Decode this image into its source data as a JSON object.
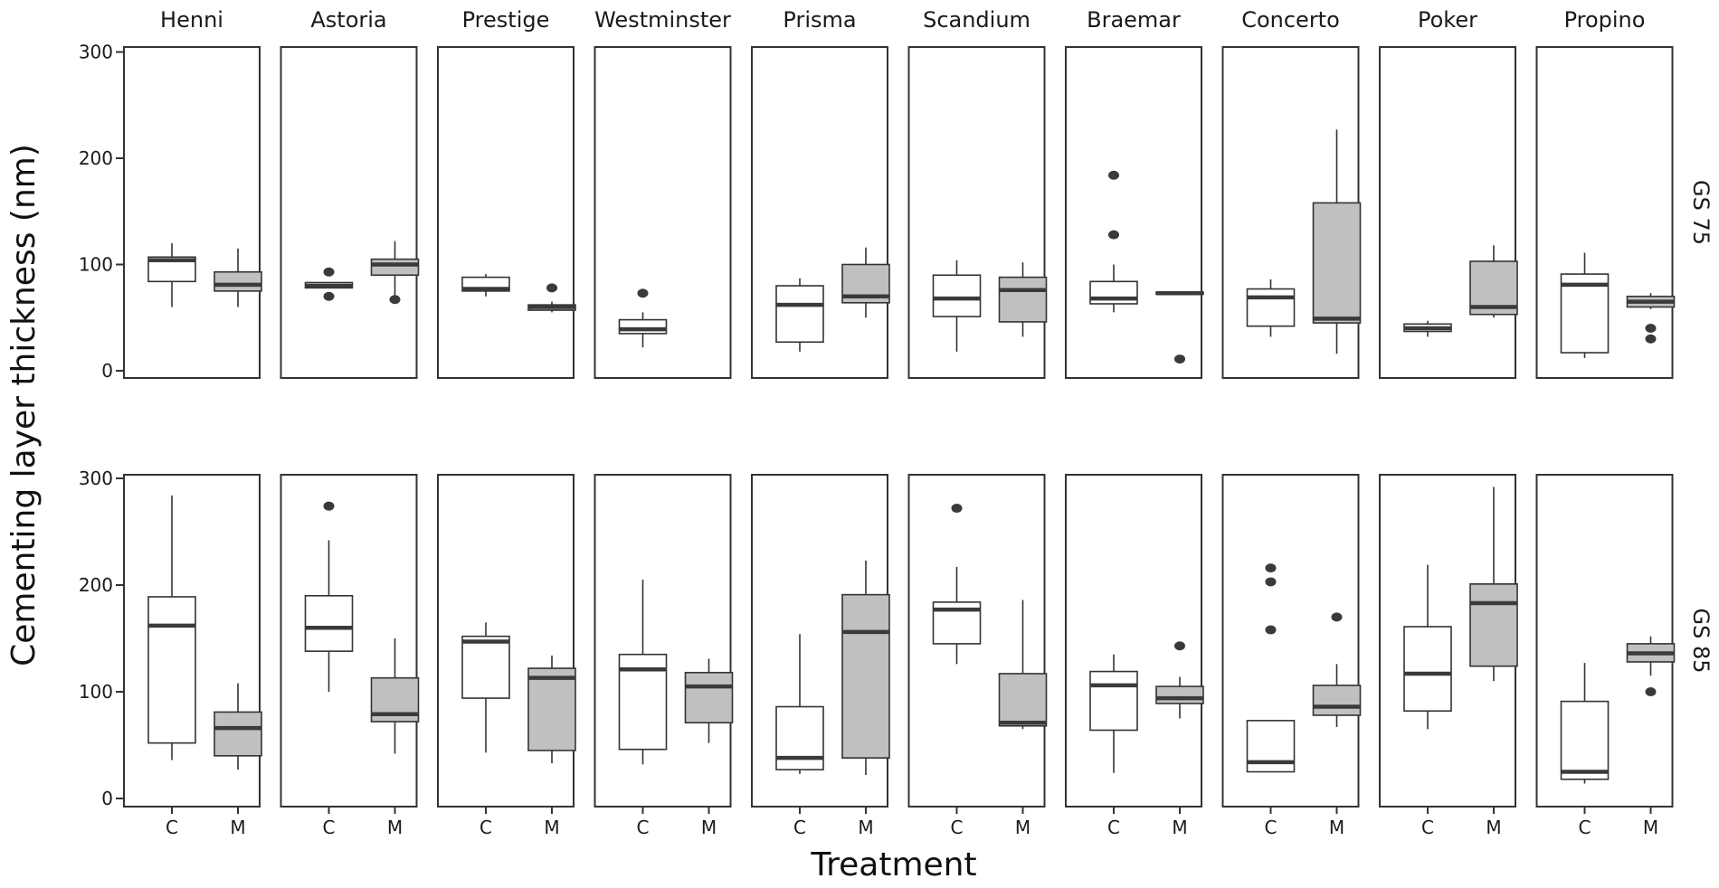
{
  "chart_data": {
    "type": "boxplot",
    "xlabel": "Treatment",
    "ylabel": "Cementing layer thickness (nm)",
    "ylim": [
      -8,
      310
    ],
    "yticks": [
      0,
      100,
      200,
      300
    ],
    "treatments": [
      "C",
      "M"
    ],
    "varieties": [
      "Henni",
      "Astoria",
      "Prestige",
      "Westminster",
      "Prisma",
      "Scandium",
      "Braemar",
      "Concerto",
      "Poker",
      "Propino"
    ],
    "rows": [
      {
        "label": "GS 75",
        "panels": [
          {
            "variety": "Henni",
            "boxes": [
              {
                "treatment": "C",
                "whisker_low": 60,
                "q1": 84,
                "median": 104,
                "q3": 107,
                "whisker_high": 120,
                "outliers": []
              },
              {
                "treatment": "M",
                "whisker_low": 60,
                "q1": 75,
                "median": 81,
                "q3": 93,
                "whisker_high": 115,
                "outliers": []
              }
            ]
          },
          {
            "variety": "Astoria",
            "boxes": [
              {
                "treatment": "C",
                "whisker_low": 78,
                "q1": 78,
                "median": 80,
                "q3": 83,
                "whisker_high": 83,
                "outliers": [
                  70,
                  93
                ]
              },
              {
                "treatment": "M",
                "whisker_low": 67,
                "q1": 90,
                "median": 100,
                "q3": 105,
                "whisker_high": 122,
                "outliers": [
                  67
                ]
              }
            ]
          },
          {
            "variety": "Prestige",
            "boxes": [
              {
                "treatment": "C",
                "whisker_low": 70,
                "q1": 75,
                "median": 77,
                "q3": 88,
                "whisker_high": 91,
                "outliers": []
              },
              {
                "treatment": "M",
                "whisker_low": 55,
                "q1": 57,
                "median": 60,
                "q3": 62,
                "whisker_high": 65,
                "outliers": [
                  78
                ]
              }
            ]
          },
          {
            "variety": "Westminster",
            "boxes": [
              {
                "treatment": "C",
                "whisker_low": 22,
                "q1": 35,
                "median": 39,
                "q3": 48,
                "whisker_high": 55,
                "outliers": [
                  73
                ]
              }
            ]
          },
          {
            "variety": "Prisma",
            "boxes": [
              {
                "treatment": "C",
                "whisker_low": 18,
                "q1": 27,
                "median": 62,
                "q3": 80,
                "whisker_high": 87,
                "outliers": []
              },
              {
                "treatment": "M",
                "whisker_low": 50,
                "q1": 64,
                "median": 70,
                "q3": 100,
                "whisker_high": 116,
                "outliers": []
              }
            ]
          },
          {
            "variety": "Scandium",
            "boxes": [
              {
                "treatment": "C",
                "whisker_low": 18,
                "q1": 51,
                "median": 68,
                "q3": 90,
                "whisker_high": 104,
                "outliers": []
              },
              {
                "treatment": "M",
                "whisker_low": 32,
                "q1": 46,
                "median": 76,
                "q3": 88,
                "whisker_high": 102,
                "outliers": []
              }
            ]
          },
          {
            "variety": "Braemar",
            "boxes": [
              {
                "treatment": "C",
                "whisker_low": 55,
                "q1": 63,
                "median": 68,
                "q3": 84,
                "whisker_high": 100,
                "outliers": [
                  128,
                  184
                ]
              },
              {
                "treatment": "M",
                "whisker_low": 72,
                "q1": 72,
                "median": 73,
                "q3": 74,
                "whisker_high": 74,
                "outliers": [
                  11
                ]
              }
            ]
          },
          {
            "variety": "Concerto",
            "boxes": [
              {
                "treatment": "C",
                "whisker_low": 32,
                "q1": 42,
                "median": 69,
                "q3": 77,
                "whisker_high": 86,
                "outliers": []
              },
              {
                "treatment": "M",
                "whisker_low": 16,
                "q1": 45,
                "median": 49,
                "q3": 158,
                "whisker_high": 227,
                "outliers": []
              }
            ]
          },
          {
            "variety": "Poker",
            "boxes": [
              {
                "treatment": "C",
                "whisker_low": 32,
                "q1": 37,
                "median": 40,
                "q3": 44,
                "whisker_high": 47,
                "outliers": []
              },
              {
                "treatment": "M",
                "whisker_low": 50,
                "q1": 53,
                "median": 60,
                "q3": 103,
                "whisker_high": 118,
                "outliers": []
              }
            ]
          },
          {
            "variety": "Propino",
            "boxes": [
              {
                "treatment": "C",
                "whisker_low": 12,
                "q1": 17,
                "median": 81,
                "q3": 91,
                "whisker_high": 111,
                "outliers": []
              },
              {
                "treatment": "M",
                "whisker_low": 58,
                "q1": 60,
                "median": 65,
                "q3": 70,
                "whisker_high": 73,
                "outliers": [
                  30,
                  40
                ]
              }
            ]
          }
        ]
      },
      {
        "label": "GS 85",
        "panels": [
          {
            "variety": "Henni",
            "boxes": [
              {
                "treatment": "C",
                "whisker_low": 36,
                "q1": 52,
                "median": 162,
                "q3": 189,
                "whisker_high": 284,
                "outliers": []
              },
              {
                "treatment": "M",
                "whisker_low": 27,
                "q1": 40,
                "median": 66,
                "q3": 81,
                "whisker_high": 108,
                "outliers": []
              }
            ]
          },
          {
            "variety": "Astoria",
            "boxes": [
              {
                "treatment": "C",
                "whisker_low": 100,
                "q1": 138,
                "median": 160,
                "q3": 190,
                "whisker_high": 242,
                "outliers": [
                  274
                ]
              },
              {
                "treatment": "M",
                "whisker_low": 42,
                "q1": 72,
                "median": 79,
                "q3": 113,
                "whisker_high": 150,
                "outliers": []
              }
            ]
          },
          {
            "variety": "Prestige",
            "boxes": [
              {
                "treatment": "C",
                "whisker_low": 43,
                "q1": 94,
                "median": 147,
                "q3": 152,
                "whisker_high": 165,
                "outliers": []
              },
              {
                "treatment": "M",
                "whisker_low": 33,
                "q1": 45,
                "median": 113,
                "q3": 122,
                "whisker_high": 134,
                "outliers": []
              }
            ]
          },
          {
            "variety": "Westminster",
            "boxes": [
              {
                "treatment": "C",
                "whisker_low": 32,
                "q1": 46,
                "median": 121,
                "q3": 135,
                "whisker_high": 205,
                "outliers": []
              },
              {
                "treatment": "M",
                "whisker_low": 52,
                "q1": 71,
                "median": 105,
                "q3": 118,
                "whisker_high": 131,
                "outliers": []
              }
            ]
          },
          {
            "variety": "Prisma",
            "boxes": [
              {
                "treatment": "C",
                "whisker_low": 23,
                "q1": 27,
                "median": 38,
                "q3": 86,
                "whisker_high": 154,
                "outliers": []
              },
              {
                "treatment": "M",
                "whisker_low": 22,
                "q1": 38,
                "median": 156,
                "q3": 191,
                "whisker_high": 223,
                "outliers": []
              }
            ]
          },
          {
            "variety": "Scandium",
            "boxes": [
              {
                "treatment": "C",
                "whisker_low": 126,
                "q1": 145,
                "median": 177,
                "q3": 184,
                "whisker_high": 217,
                "outliers": [
                  272
                ]
              },
              {
                "treatment": "M",
                "whisker_low": 65,
                "q1": 68,
                "median": 71,
                "q3": 117,
                "whisker_high": 186,
                "outliers": []
              }
            ]
          },
          {
            "variety": "Braemar",
            "boxes": [
              {
                "treatment": "C",
                "whisker_low": 24,
                "q1": 64,
                "median": 106,
                "q3": 119,
                "whisker_high": 135,
                "outliers": []
              },
              {
                "treatment": "M",
                "whisker_low": 75,
                "q1": 89,
                "median": 94,
                "q3": 105,
                "whisker_high": 114,
                "outliers": [
                  143
                ]
              }
            ]
          },
          {
            "variety": "Concerto",
            "boxes": [
              {
                "treatment": "C",
                "whisker_low": 25,
                "q1": 25,
                "median": 34,
                "q3": 73,
                "whisker_high": 73,
                "outliers": [
                  158,
                  203,
                  216
                ]
              },
              {
                "treatment": "M",
                "whisker_low": 67,
                "q1": 78,
                "median": 86,
                "q3": 106,
                "whisker_high": 126,
                "outliers": [
                  170
                ]
              }
            ]
          },
          {
            "variety": "Poker",
            "boxes": [
              {
                "treatment": "C",
                "whisker_low": 65,
                "q1": 82,
                "median": 117,
                "q3": 161,
                "whisker_high": 219,
                "outliers": []
              },
              {
                "treatment": "M",
                "whisker_low": 110,
                "q1": 124,
                "median": 183,
                "q3": 201,
                "whisker_high": 292,
                "outliers": []
              }
            ]
          },
          {
            "variety": "Propino",
            "boxes": [
              {
                "treatment": "C",
                "whisker_low": 14,
                "q1": 18,
                "median": 25,
                "q3": 91,
                "whisker_high": 127,
                "outliers": []
              },
              {
                "treatment": "M",
                "whisker_low": 115,
                "q1": 128,
                "median": 136,
                "q3": 145,
                "whisker_high": 152,
                "outliers": [
                  100
                ]
              }
            ]
          }
        ]
      }
    ],
    "colors": {
      "C": "#ffffff",
      "M": "#c0c0c0",
      "stroke": "#333333",
      "median": "#3a3a3a",
      "outlier": "#3a3a3a"
    }
  }
}
